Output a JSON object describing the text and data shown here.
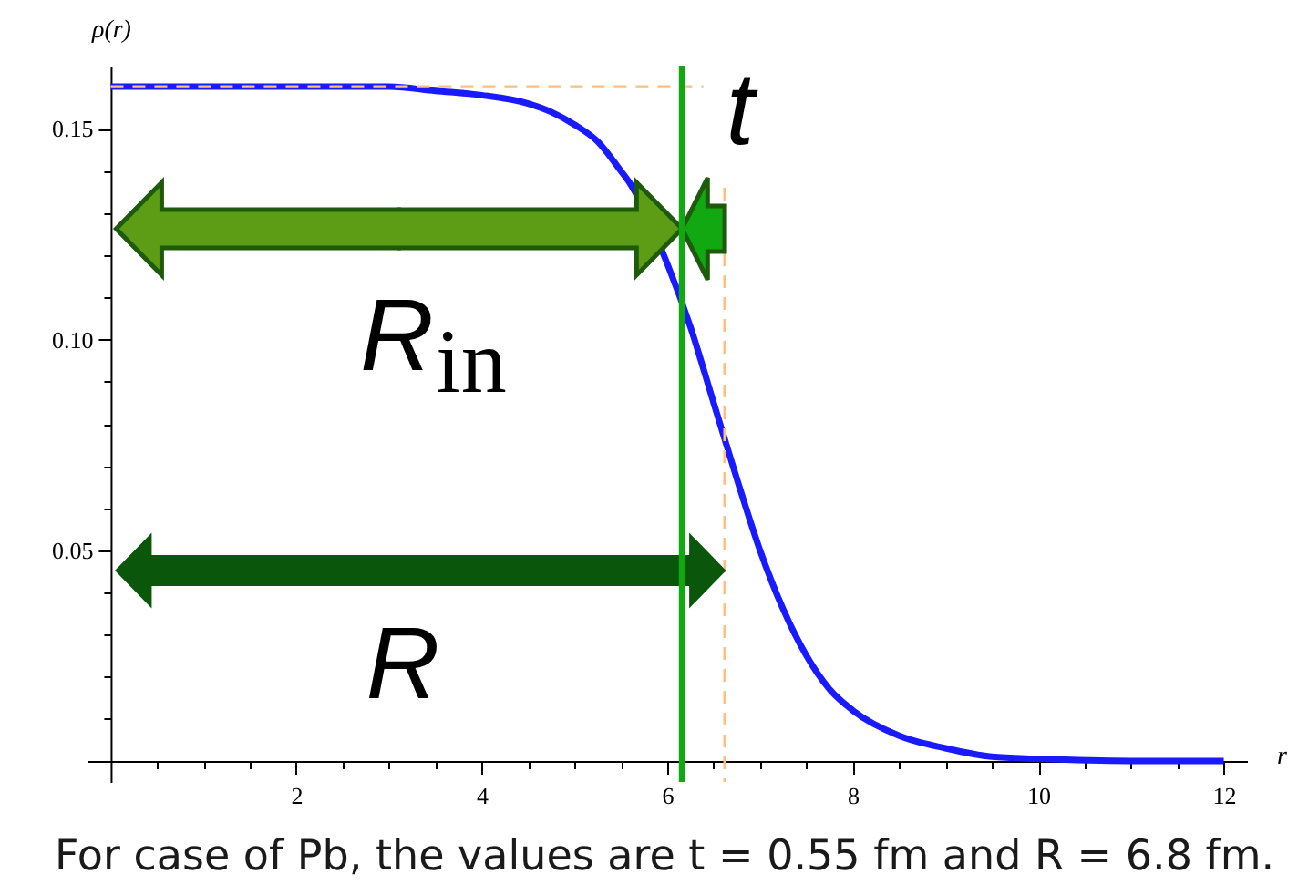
{
  "chart_data": {
    "type": "line",
    "xlabel": "r",
    "ylabel": "ρ(r)",
    "x": [
      0,
      1,
      2,
      2.5,
      3,
      3.5,
      4,
      4.5,
      4.75,
      5,
      5.25,
      5.5,
      5.6,
      6,
      6.25,
      6.5,
      6.75,
      7,
      7.25,
      7.5,
      7.75,
      8,
      8.5,
      9,
      9.5,
      10,
      11,
      12
    ],
    "series": [
      {
        "color": "#1a1aff",
        "line_style": "solid",
        "values": [
          0.16,
          0.16,
          0.16,
          0.16,
          0.16,
          0.159,
          0.158,
          0.156,
          0.154,
          0.151,
          0.147,
          0.14,
          0.137,
          0.118,
          0.103,
          0.085,
          0.067,
          0.05,
          0.036,
          0.025,
          0.017,
          0.012,
          0.006,
          0.003,
          0.001,
          0.0005,
          0.0,
          0.0
        ]
      },
      {
        "type": "line",
        "color": "#ffbf80",
        "line_style": "dashed",
        "x": [
          6.62,
          6.62
        ],
        "values": [
          0.136,
          -0.005
        ]
      },
      {
        "type": "line",
        "color": "#ffbf80",
        "line_style": "dashed",
        "x": [
          0,
          6.39
        ],
        "values": [
          0.16,
          0.16
        ]
      }
    ],
    "xlim": [
      -0.25,
      12.25
    ],
    "ylim": [
      -0.005,
      0.165
    ],
    "xticks": [
      {
        "value": 0.5,
        "label": null
      },
      {
        "value": 1,
        "label": null
      },
      {
        "value": 1.5,
        "label": null
      },
      2,
      {
        "value": 2.5,
        "label": null
      },
      {
        "value": 3,
        "label": null
      },
      {
        "value": 3.5,
        "label": null
      },
      4,
      {
        "value": 4.5,
        "label": null
      },
      {
        "value": 5,
        "label": null
      },
      {
        "value": 5.5,
        "label": null
      },
      6,
      {
        "value": 6.5,
        "label": null
      },
      {
        "value": 7,
        "label": null
      },
      {
        "value": 7.5,
        "label": null
      },
      8,
      {
        "value": 8.5,
        "label": null
      },
      {
        "value": 9,
        "label": null
      },
      {
        "value": 9.5,
        "label": null
      },
      10,
      {
        "value": 10.5,
        "label": null
      },
      {
        "value": 11,
        "label": null
      },
      {
        "value": 11.5,
        "label": null
      },
      12
    ],
    "yticks": [
      {
        "value": 0.01,
        "label": null
      },
      {
        "value": 0.02,
        "label": null
      },
      {
        "value": 0.03,
        "label": null
      },
      {
        "value": 0.04,
        "label": null
      },
      0.05,
      {
        "value": 0.06,
        "label": null
      },
      {
        "value": 0.07,
        "label": null
      },
      {
        "value": 0.08,
        "label": null
      },
      {
        "value": 0.09,
        "label": null
      },
      {
        "value": 0.1,
        "label": "0.10"
      },
      {
        "value": 0.11,
        "label": null
      },
      {
        "value": 0.12,
        "label": null
      },
      {
        "value": 0.13,
        "label": null
      },
      {
        "value": 0.14,
        "label": null
      },
      0.15
    ],
    "ref_lines": [
      {
        "axis": "x",
        "value": 6.16,
        "color": "#11a811",
        "line_style": "solid"
      }
    ],
    "annotations": [
      "R$_{in}$",
      "t",
      "R",
      "For case of Pb, the values are t = 0.55 fm and R = 6.8 fm."
    ],
    "grid": false
  }
}
